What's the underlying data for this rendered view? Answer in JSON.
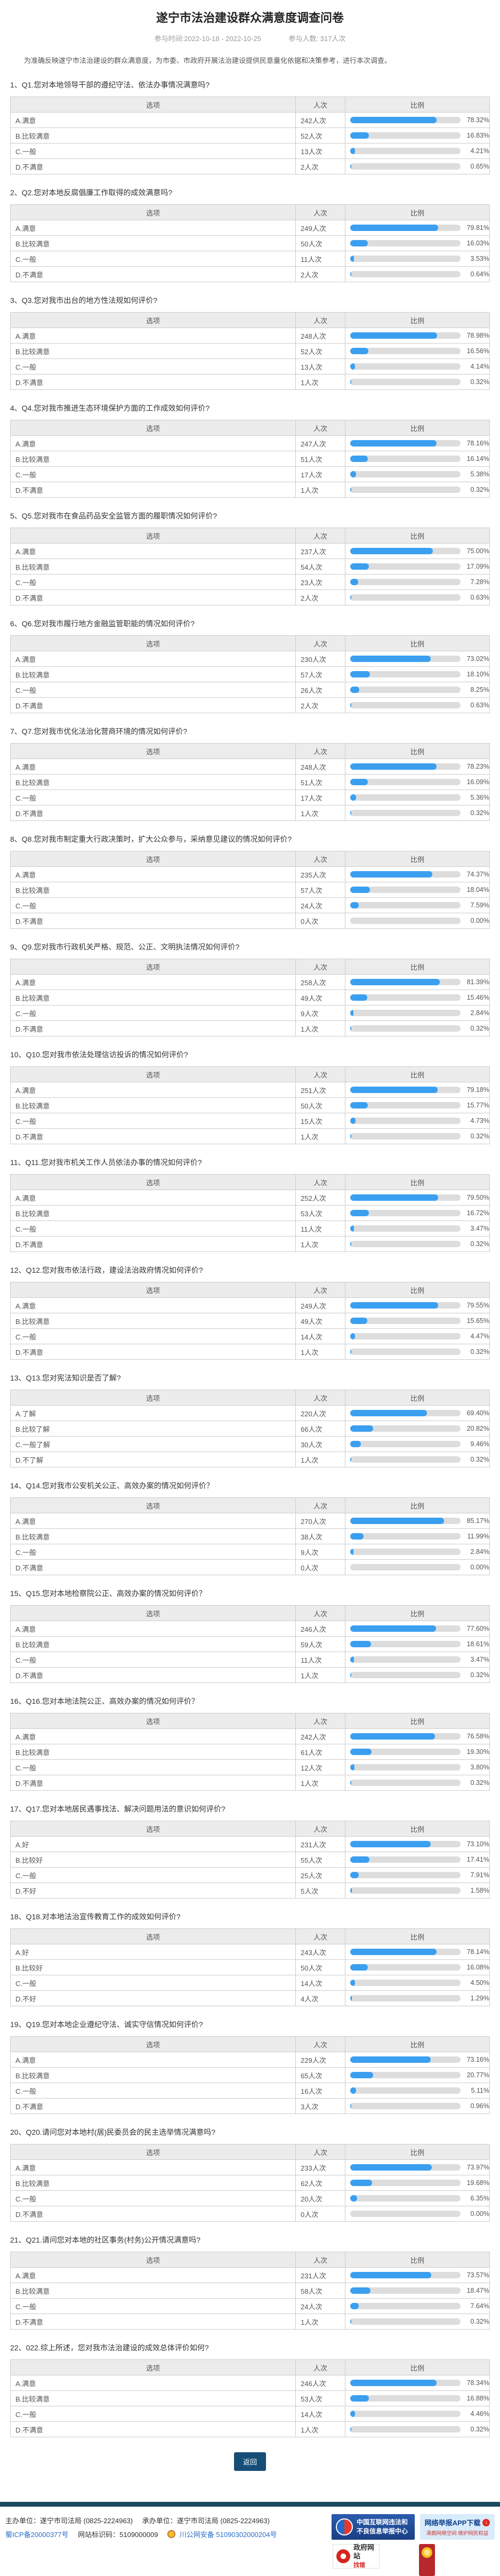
{
  "page": {
    "title": "遂宁市法治建设群众满意度调查问卷",
    "meta_time": "参与时间:2022-10-18 - 2022-10-25",
    "meta_count": "参与人数: 317人次",
    "intro": "为准确反映遂宁市法治建设的群众满意度，为市委、市政府开展法治建设提供民意量化依据和决策参考，进行本次调查。",
    "back_button": "返回"
  },
  "table_headers": {
    "option": "选项",
    "count": "人次",
    "ratio": "比例"
  },
  "labels": {
    "unit": "人次"
  },
  "questions": [
    {
      "no": "1",
      "title": "Q1.您对本地领导干部的遵纪守法、依法办事情况满意吗?",
      "rows": [
        {
          "label": "A.满意",
          "count": 242,
          "pct": "78.32%"
        },
        {
          "label": "B.比较满意",
          "count": 52,
          "pct": "16.83%"
        },
        {
          "label": "C.一般",
          "count": 13,
          "pct": "4.21%"
        },
        {
          "label": "D.不满意",
          "count": 2,
          "pct": "0.65%"
        }
      ]
    },
    {
      "no": "2",
      "title": "Q2.您对本地反腐倡廉工作取得的成效满意吗?",
      "rows": [
        {
          "label": "A.满意",
          "count": 249,
          "pct": "79.81%"
        },
        {
          "label": "B.比较满意",
          "count": 50,
          "pct": "16.03%"
        },
        {
          "label": "C.一般",
          "count": 11,
          "pct": "3.53%"
        },
        {
          "label": "D.不满意",
          "count": 2,
          "pct": "0.64%"
        }
      ]
    },
    {
      "no": "3",
      "title": "Q3.您对我市出台的地方性法规如何评价?",
      "rows": [
        {
          "label": "A.满意",
          "count": 248,
          "pct": "78.98%"
        },
        {
          "label": "B.比较满意",
          "count": 52,
          "pct": "16.56%"
        },
        {
          "label": "C.一般",
          "count": 13,
          "pct": "4.14%"
        },
        {
          "label": "D.不满意",
          "count": 1,
          "pct": "0.32%"
        }
      ]
    },
    {
      "no": "4",
      "title": "Q4.您对我市推进生态环境保护方面的工作成效如何评价?",
      "rows": [
        {
          "label": "A.满意",
          "count": 247,
          "pct": "78.16%"
        },
        {
          "label": "B.比较满意",
          "count": 51,
          "pct": "16.14%"
        },
        {
          "label": "C.一般",
          "count": 17,
          "pct": "5.38%"
        },
        {
          "label": "D.不满意",
          "count": 1,
          "pct": "0.32%"
        }
      ]
    },
    {
      "no": "5",
      "title": "Q5.您对我市在食品药品安全监管方面的履职情况如何评价?",
      "rows": [
        {
          "label": "A.满意",
          "count": 237,
          "pct": "75.00%"
        },
        {
          "label": "B.比较满意",
          "count": 54,
          "pct": "17.09%"
        },
        {
          "label": "C.一般",
          "count": 23,
          "pct": "7.28%"
        },
        {
          "label": "D.不满意",
          "count": 2,
          "pct": "0.63%"
        }
      ]
    },
    {
      "no": "6",
      "title": "Q6.您对我市履行地方金融监管职能的情况如何评价?",
      "rows": [
        {
          "label": "A.满意",
          "count": 230,
          "pct": "73.02%"
        },
        {
          "label": "B.比较满意",
          "count": 57,
          "pct": "18.10%"
        },
        {
          "label": "C.一般",
          "count": 26,
          "pct": "8.25%"
        },
        {
          "label": "D.不满意",
          "count": 2,
          "pct": "0.63%"
        }
      ]
    },
    {
      "no": "7",
      "title": "Q7.您对我市优化法治化营商环境的情况如何评价?",
      "rows": [
        {
          "label": "A.满意",
          "count": 248,
          "pct": "78.23%"
        },
        {
          "label": "B.比较满意",
          "count": 51,
          "pct": "16.09%"
        },
        {
          "label": "C.一般",
          "count": 17,
          "pct": "5.36%"
        },
        {
          "label": "D.不满意",
          "count": 1,
          "pct": "0.32%"
        }
      ]
    },
    {
      "no": "8",
      "title": "Q8.您对我市制定重大行政决策时，扩大公众参与，采纳意见建议的情况如何评价?",
      "rows": [
        {
          "label": "A.满意",
          "count": 235,
          "pct": "74.37%"
        },
        {
          "label": "B.比较满意",
          "count": 57,
          "pct": "18.04%"
        },
        {
          "label": "C.一般",
          "count": 24,
          "pct": "7.59%"
        },
        {
          "label": "D.不满意",
          "count": 0,
          "pct": "0.00%"
        }
      ]
    },
    {
      "no": "9",
      "title": "Q9.您对我市行政机关严格、规范、公正、文明执法情况如何评价?",
      "rows": [
        {
          "label": "A.满意",
          "count": 258,
          "pct": "81.39%"
        },
        {
          "label": "B.比较满意",
          "count": 49,
          "pct": "15.46%"
        },
        {
          "label": "C.一般",
          "count": 9,
          "pct": "2.84%"
        },
        {
          "label": "D.不满意",
          "count": 1,
          "pct": "0.32%"
        }
      ]
    },
    {
      "no": "10",
      "title": "Q10.您对我市依法处理信访投诉的情况如何评价?",
      "rows": [
        {
          "label": "A.满意",
          "count": 251,
          "pct": "79.18%"
        },
        {
          "label": "B.比较满意",
          "count": 50,
          "pct": "15.77%"
        },
        {
          "label": "C.一般",
          "count": 15,
          "pct": "4.73%"
        },
        {
          "label": "D.不满意",
          "count": 1,
          "pct": "0.32%"
        }
      ]
    },
    {
      "no": "11",
      "title": "Q11.您对我市机关工作人员依法办事的情况如何评价?",
      "rows": [
        {
          "label": "A.满意",
          "count": 252,
          "pct": "79.50%"
        },
        {
          "label": "B.比较满意",
          "count": 53,
          "pct": "16.72%"
        },
        {
          "label": "C.一般",
          "count": 11,
          "pct": "3.47%"
        },
        {
          "label": "D.不满意",
          "count": 1,
          "pct": "0.32%"
        }
      ]
    },
    {
      "no": "12",
      "title": "Q12.您对我市依法行政，建设法治政府情况如何评价?",
      "rows": [
        {
          "label": "A.满意",
          "count": 249,
          "pct": "79.55%"
        },
        {
          "label": "B.比较满意",
          "count": 49,
          "pct": "15.65%"
        },
        {
          "label": "C.一般",
          "count": 14,
          "pct": "4.47%"
        },
        {
          "label": "D.不满意",
          "count": 1,
          "pct": "0.32%"
        }
      ]
    },
    {
      "no": "13",
      "title": "Q13.您对宪法知识是否了解?",
      "rows": [
        {
          "label": "A.了解",
          "count": 220,
          "pct": "69.40%"
        },
        {
          "label": "B.比较了解",
          "count": 66,
          "pct": "20.82%"
        },
        {
          "label": "C.一般了解",
          "count": 30,
          "pct": "9.46%"
        },
        {
          "label": "D.不了解",
          "count": 1,
          "pct": "0.32%"
        }
      ]
    },
    {
      "no": "14",
      "title": "Q14.您对我市公安机关公正、高效办案的情况如何评价？",
      "rows": [
        {
          "label": "A.满意",
          "count": 270,
          "pct": "85.17%"
        },
        {
          "label": "B.比较满意",
          "count": 38,
          "pct": "11.99%"
        },
        {
          "label": "C.一般",
          "count": 9,
          "pct": "2.84%"
        },
        {
          "label": "D.不满意",
          "count": 0,
          "pct": "0.00%"
        }
      ]
    },
    {
      "no": "15",
      "title": "Q15.您对本地检察院公正、高效办案的情况如何评价？",
      "rows": [
        {
          "label": "A.满意",
          "count": 246,
          "pct": "77.60%"
        },
        {
          "label": "B.比较满意",
          "count": 59,
          "pct": "18.61%"
        },
        {
          "label": "C.一般",
          "count": 11,
          "pct": "3.47%"
        },
        {
          "label": "D.不满意",
          "count": 1,
          "pct": "0.32%"
        }
      ]
    },
    {
      "no": "16",
      "title": "Q16.您对本地法院公正、高效办案的情况如何评价？",
      "rows": [
        {
          "label": "A.满意",
          "count": 242,
          "pct": "76.58%"
        },
        {
          "label": "B.比较满意",
          "count": 61,
          "pct": "19.30%"
        },
        {
          "label": "C.一般",
          "count": 12,
          "pct": "3.80%"
        },
        {
          "label": "D.不满意",
          "count": 1,
          "pct": "0.32%"
        }
      ]
    },
    {
      "no": "17",
      "title": "Q17.您对本地居民遇事找法、解决问题用法的意识如何评价?",
      "rows": [
        {
          "label": "A.好",
          "count": 231,
          "pct": "73.10%"
        },
        {
          "label": "B.比较好",
          "count": 55,
          "pct": "17.41%"
        },
        {
          "label": "C.一般",
          "count": 25,
          "pct": "7.91%"
        },
        {
          "label": "D.不好",
          "count": 5,
          "pct": "1.58%"
        }
      ]
    },
    {
      "no": "18",
      "title": "Q18.对本地法治宣传教育工作的成效如何评价?",
      "rows": [
        {
          "label": "A.好",
          "count": 243,
          "pct": "78.14%"
        },
        {
          "label": "B.比较好",
          "count": 50,
          "pct": "16.08%"
        },
        {
          "label": "C.一般",
          "count": 14,
          "pct": "4.50%"
        },
        {
          "label": "D.不好",
          "count": 4,
          "pct": "1.29%"
        }
      ]
    },
    {
      "no": "19",
      "title": "Q19.您对本地企业遵纪守法、诚实守信情况如何评价?",
      "rows": [
        {
          "label": "A.满意",
          "count": 229,
          "pct": "73.16%"
        },
        {
          "label": "B.比较满意",
          "count": 65,
          "pct": "20.77%"
        },
        {
          "label": "C.一般",
          "count": 16,
          "pct": "5.11%"
        },
        {
          "label": "D.不满意",
          "count": 3,
          "pct": "0.96%"
        }
      ]
    },
    {
      "no": "20",
      "title": "Q20.请问您对本地村(居)民委员会的民主选举情况满意吗?",
      "rows": [
        {
          "label": "A.满意",
          "count": 233,
          "pct": "73.97%"
        },
        {
          "label": "B.比较满意",
          "count": 62,
          "pct": "19.68%"
        },
        {
          "label": "C.一般",
          "count": 20,
          "pct": "6.35%"
        },
        {
          "label": "D.不满意",
          "count": 0,
          "pct": "0.00%"
        }
      ]
    },
    {
      "no": "21",
      "title": "Q21.请问您对本地的社区事务(村务)公开情况满意吗?",
      "rows": [
        {
          "label": "A.满意",
          "count": 231,
          "pct": "73.57%"
        },
        {
          "label": "B.比较满意",
          "count": 58,
          "pct": "18.47%"
        },
        {
          "label": "C.一般",
          "count": 24,
          "pct": "7.64%"
        },
        {
          "label": "D.不满意",
          "count": 1,
          "pct": "0.32%"
        }
      ]
    },
    {
      "no": "22",
      "title": "022.综上所述，您对我市法治建设的成效总体评价如何?",
      "rows": [
        {
          "label": "A.满意",
          "count": 246,
          "pct": "78.34%"
        },
        {
          "label": "B.比较满意",
          "count": 53,
          "pct": "16.88%"
        },
        {
          "label": "C.一般",
          "count": 14,
          "pct": "4.46%"
        },
        {
          "label": "D.不满意",
          "count": 1,
          "pct": "0.32%"
        }
      ]
    }
  ],
  "footer": {
    "host": "主办单位：遂宁市司法局 (0825-2224963)",
    "organizer": "承办单位：遂宁市司法局 (0825-2224963)",
    "icp": "蜀ICP备20000377号",
    "site_code": "网站标识码：5109000009",
    "police": "川公网安备 51090302000204号",
    "badges": {
      "report_center_line1": "中国互联网违法和",
      "report_center_line2": "不良信息举报中心",
      "app_title": "网络举报APP下载",
      "app_sub": "清朗网络空间 维护网民权益",
      "gov_text": "政府网站",
      "gov_sub": "找错"
    }
  }
}
